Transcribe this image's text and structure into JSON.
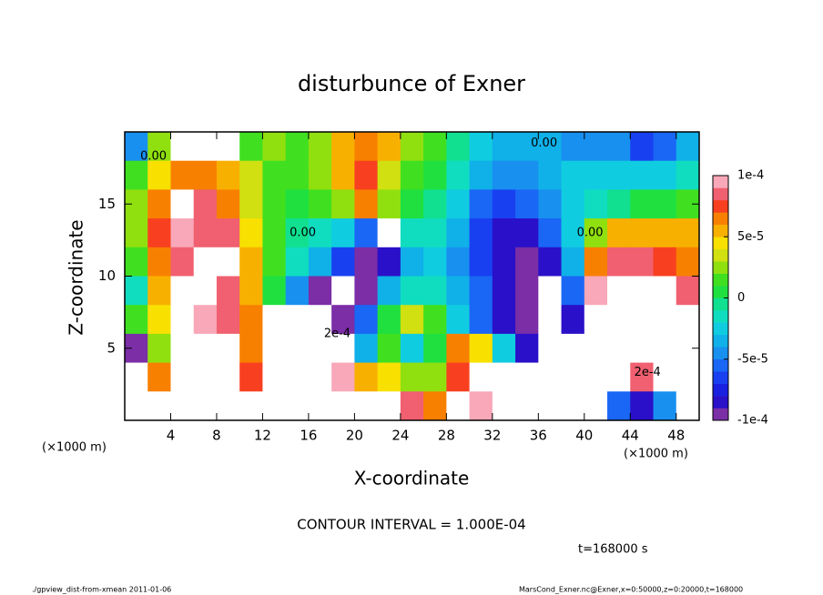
{
  "chart_data": {
    "type": "contour",
    "title": "disturbunce of Exner",
    "x_label": "X-coordinate",
    "y_label": "Z-coordinate",
    "x_unit_label": "(×1000 m)",
    "y_unit_label": "(×1000 m)",
    "contour_interval": "CONTOUR INTERVAL = 1.000E-04",
    "time_label": "t=168000 s",
    "footer_left": "./gpview_dist-from-xmean  2011-01-06",
    "footer_right": "MarsCond_Exner.nc@Exner,x=0:50000,z=0:20000,t=168000",
    "xlim": [
      0,
      50
    ],
    "ylim": [
      0,
      20
    ],
    "xticks": [
      4,
      8,
      12,
      16,
      20,
      24,
      28,
      32,
      36,
      40,
      44,
      48
    ],
    "yticks": [
      5,
      10,
      15
    ],
    "x": [
      1,
      3,
      5,
      7,
      9,
      11,
      13,
      15,
      17,
      19,
      21,
      23,
      25,
      27,
      29,
      31,
      33,
      35,
      37,
      39,
      41,
      43,
      45,
      47,
      49
    ],
    "y": [
      19,
      17,
      15,
      13,
      11,
      9,
      7,
      5,
      3,
      1
    ],
    "z": [
      [
        -5e-05,
        2e-05,
        0.00015,
        0.00015,
        0.00015,
        1e-05,
        2e-05,
        1e-05,
        2e-05,
        5e-05,
        6e-05,
        5e-05,
        2e-05,
        1e-05,
        -1e-05,
        -3e-05,
        -4e-05,
        -4e-05,
        -4e-05,
        -5e-05,
        -5e-05,
        -5e-05,
        -7e-05,
        -6e-05,
        -4e-05
      ],
      [
        1e-05,
        4e-05,
        6e-05,
        6e-05,
        5e-05,
        3e-05,
        1e-05,
        1e-05,
        2e-05,
        5e-05,
        7e-05,
        3e-05,
        1e-05,
        0,
        -2e-05,
        -4e-05,
        -5e-05,
        -5e-05,
        -4e-05,
        -3e-05,
        -3e-05,
        -3e-05,
        -3e-05,
        -3e-05,
        -2e-05
      ],
      [
        2e-05,
        6e-05,
        0.00015,
        8e-05,
        6e-05,
        3e-05,
        1e-05,
        0,
        1e-05,
        2e-05,
        6e-05,
        2e-05,
        0,
        -1e-05,
        -3e-05,
        -6e-05,
        -7e-05,
        -6e-05,
        -5e-05,
        -3e-05,
        -2e-05,
        -1e-05,
        0,
        0,
        1e-05
      ],
      [
        2e-05,
        7e-05,
        9e-05,
        8e-05,
        8e-05,
        4e-05,
        1e-05,
        -1e-05,
        -2e-05,
        -3e-05,
        -6e-05,
        0.00015,
        -2e-05,
        -2e-05,
        -4e-05,
        -7e-05,
        -8e-05,
        -8e-05,
        -6e-05,
        -3e-05,
        2e-05,
        5e-05,
        5e-05,
        5e-05,
        5e-05
      ],
      [
        1e-05,
        6e-05,
        8e-05,
        0.00015,
        0.00015,
        5e-05,
        1e-05,
        -2e-05,
        -4e-05,
        -7e-05,
        -9e-05,
        -8e-05,
        -4e-05,
        -3e-05,
        -5e-05,
        -7e-05,
        -8e-05,
        -9e-05,
        -8e-05,
        -4e-05,
        6e-05,
        8e-05,
        8e-05,
        7e-05,
        6e-05
      ],
      [
        -2e-05,
        5e-05,
        0.00015,
        0.00015,
        8e-05,
        5e-05,
        0,
        -5e-05,
        -9e-05,
        -0.00011,
        -0.0001,
        -4e-05,
        -2e-05,
        -2e-05,
        -4e-05,
        -6e-05,
        -8e-05,
        -9e-05,
        0.00015,
        -6e-05,
        9e-05,
        0.00015,
        0.00015,
        0.00015,
        8e-05
      ],
      [
        1e-05,
        4e-05,
        0.00015,
        9e-05,
        8e-05,
        6e-05,
        0.00015,
        0.00015,
        0.00015,
        -9e-05,
        -6e-05,
        0,
        3e-05,
        1e-05,
        -3e-05,
        -6e-05,
        -8e-05,
        -9e-05,
        0.00015,
        -8e-05,
        0.00015,
        0.00015,
        0.00015,
        0.00015,
        0.00015
      ],
      [
        -9e-05,
        2e-05,
        0.00015,
        0.00015,
        0.00015,
        6e-05,
        0.00015,
        0.00015,
        0.00015,
        0.00015,
        -4e-05,
        1e-05,
        -3e-05,
        0,
        6e-05,
        4e-05,
        -3e-05,
        -8e-05,
        0.00015,
        0.00015,
        0.00015,
        0.00015,
        0.00015,
        0.00015,
        0.00015
      ],
      [
        0.00015,
        6e-05,
        0.00015,
        0.00015,
        0.00015,
        7e-05,
        0.00015,
        0.00015,
        0.00015,
        9e-05,
        5e-05,
        4e-05,
        2e-05,
        2e-05,
        7e-05,
        0.00015,
        0.00015,
        0.00015,
        0.00015,
        0.00015,
        0.00015,
        0.00015,
        8e-05,
        0.00015,
        0.00015
      ],
      [
        0.00015,
        0.00015,
        0.00015,
        0.00015,
        0.00015,
        0.00015,
        0.00015,
        0.00015,
        0.00015,
        0.00015,
        0.00015,
        0.00015,
        8e-05,
        6e-05,
        0.00015,
        9e-05,
        0.00015,
        0.00015,
        0.00015,
        0.00015,
        0.00015,
        -6e-05,
        -8e-05,
        -5e-05,
        0.00015
      ]
    ],
    "zlim": [
      -0.0001,
      0.0001
    ],
    "zticks": [
      {
        "value": 0.0001,
        "label": "1e-4"
      },
      {
        "value": 5e-05,
        "label": "5e-5"
      },
      0,
      {
        "value": -5e-05,
        "label": "-5e-5"
      },
      {
        "value": -0.0001,
        "label": "-1e-4"
      }
    ],
    "colors": [
      "#7b2ea6",
      "#2a10c8",
      "#1a20e0",
      "#1840f0",
      "#1a66f5",
      "#1890f0",
      "#10b0e8",
      "#10cce0",
      "#10ddc0",
      "#10e090",
      "#20e040",
      "#40e020",
      "#90e010",
      "#d0e010",
      "#f8e000",
      "#f8b000",
      "#f88000",
      "#f84020",
      "#f06070",
      "#f8a8b8"
    ],
    "annotations": [
      {
        "text": "0.00",
        "x": 2.5,
        "y": 18.3
      },
      {
        "text": "0.00",
        "x": 36.5,
        "y": 19.2
      },
      {
        "text": "0.00",
        "x": 15.5,
        "y": 13
      },
      {
        "text": "0.00",
        "x": 40.5,
        "y": 13
      },
      {
        "text": "2e-4",
        "x": 18.5,
        "y": 6
      },
      {
        "text": "2e-4",
        "x": 45.5,
        "y": 3.3
      }
    ]
  }
}
